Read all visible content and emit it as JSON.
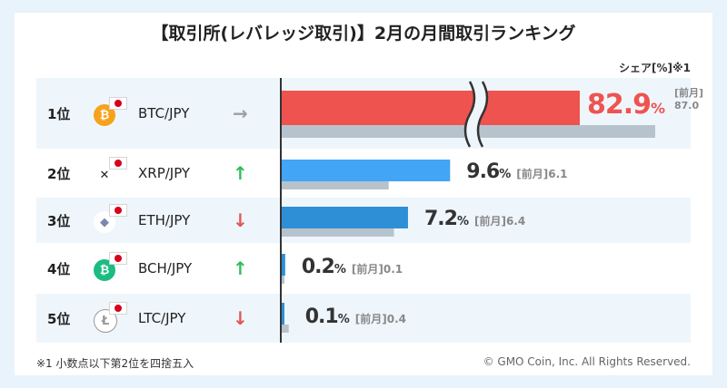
{
  "title": "【取引所(レバレッジ取引)】2月の月間取引ランキング",
  "share_label": "シェア[%]※1",
  "prev_prefix": "[前月]",
  "footnote": "※1 小数点以下第2位を四捨五入",
  "copyright": "© GMO Coin, Inc. All Rights Reserved.",
  "colors": {
    "current_bar_top": "#ef5350",
    "current_bar": "#42a5f5",
    "current_bar_dark": "#2f8fd6",
    "prev_bar": "#b7c3cc",
    "up": "#2ebd59",
    "down": "#e05757",
    "flat": "#9e9e9e"
  },
  "chart_data": {
    "type": "bar",
    "orientation": "horizontal",
    "categories": [
      "BTC/JPY",
      "XRP/JPY",
      "ETH/JPY",
      "BCH/JPY",
      "LTC/JPY"
    ],
    "ranks": [
      "1位",
      "2位",
      "3位",
      "4位",
      "5位"
    ],
    "trends": [
      "flat",
      "up",
      "down",
      "up",
      "down"
    ],
    "trend_icons": [
      "arrow-right-icon",
      "arrow-up-icon",
      "arrow-down-icon",
      "arrow-up-icon",
      "arrow-down-icon"
    ],
    "series": [
      {
        "name": "2月",
        "values": [
          82.9,
          9.6,
          7.2,
          0.2,
          0.1
        ]
      },
      {
        "name": "前月",
        "values": [
          87.0,
          6.1,
          6.4,
          0.1,
          0.4
        ]
      }
    ],
    "value_labels": [
      "82.9",
      "9.6",
      "7.2",
      "0.2",
      "0.1"
    ],
    "prev_labels": [
      "87.0",
      "6.1",
      "6.4",
      "0.1",
      "0.4"
    ],
    "unit": "%",
    "axis_break": true
  }
}
